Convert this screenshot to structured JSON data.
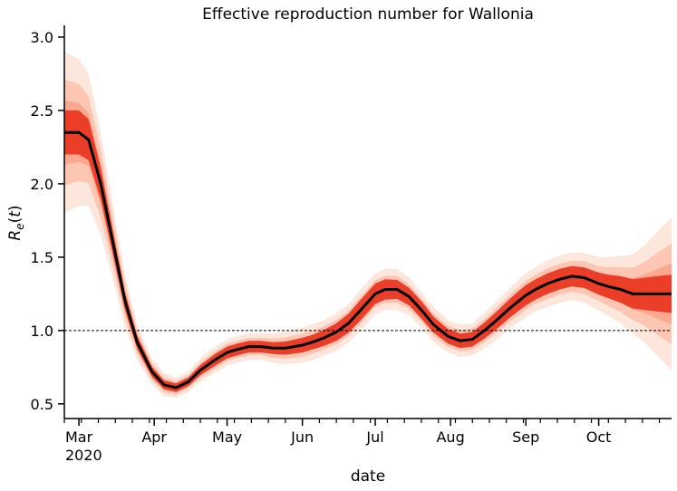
{
  "chart_data": {
    "type": "line",
    "title": "Effective reproduction number for Wallonia",
    "xlabel": "date",
    "ylabel": "R_e(t)",
    "ylim": [
      0.4,
      3.08
    ],
    "xlim": [
      "2020-02-24",
      "2020-10-31"
    ],
    "yticks": [
      0.5,
      1.0,
      1.5,
      2.0,
      2.5,
      3.0
    ],
    "ytick_labels": [
      "0.5",
      "1.0",
      "1.5",
      "2.0",
      "2.5",
      "3.0"
    ],
    "xticks": [
      {
        "date": "2020-03-01",
        "label": "Mar"
      },
      {
        "date": "2020-04-01",
        "label": "Apr"
      },
      {
        "date": "2020-05-01",
        "label": "May"
      },
      {
        "date": "2020-06-01",
        "label": "Jun"
      },
      {
        "date": "2020-07-01",
        "label": "Jul"
      },
      {
        "date": "2020-08-01",
        "label": "Aug"
      },
      {
        "date": "2020-09-01",
        "label": "Sep"
      },
      {
        "date": "2020-10-01",
        "label": "Oct"
      }
    ],
    "year_label": "2020",
    "reference_line": 1.0,
    "series": [
      {
        "color": "#000000",
        "x": [
          "2020-02-24",
          "2020-03-01",
          "2020-03-05",
          "2020-03-10",
          "2020-03-15",
          "2020-03-20",
          "2020-03-25",
          "2020-03-31",
          "2020-04-05",
          "2020-04-10",
          "2020-04-15",
          "2020-04-20",
          "2020-04-26",
          "2020-05-01",
          "2020-05-05",
          "2020-05-10",
          "2020-05-15",
          "2020-05-20",
          "2020-05-25",
          "2020-06-01",
          "2020-06-05",
          "2020-06-10",
          "2020-06-15",
          "2020-06-20",
          "2020-06-25",
          "2020-07-01",
          "2020-07-05",
          "2020-07-10",
          "2020-07-15",
          "2020-07-20",
          "2020-07-25",
          "2020-07-31",
          "2020-08-05",
          "2020-08-10",
          "2020-08-15",
          "2020-08-20",
          "2020-08-26",
          "2020-09-01",
          "2020-09-05",
          "2020-09-10",
          "2020-09-15",
          "2020-09-20",
          "2020-09-25",
          "2020-10-01",
          "2020-10-05",
          "2020-10-10",
          "2020-10-15",
          "2020-10-20",
          "2020-10-25",
          "2020-10-31"
        ],
        "y": [
          2.35,
          2.35,
          2.3,
          2.0,
          1.6,
          1.2,
          0.92,
          0.72,
          0.63,
          0.61,
          0.65,
          0.73,
          0.8,
          0.85,
          0.87,
          0.89,
          0.89,
          0.88,
          0.88,
          0.9,
          0.92,
          0.95,
          0.99,
          1.05,
          1.14,
          1.25,
          1.28,
          1.28,
          1.23,
          1.14,
          1.04,
          0.96,
          0.93,
          0.94,
          1.0,
          1.07,
          1.16,
          1.24,
          1.28,
          1.32,
          1.35,
          1.37,
          1.36,
          1.32,
          1.3,
          1.28,
          1.25,
          1.25,
          1.25,
          1.25
        ],
        "band_inner": [
          0.15,
          0.15,
          0.14,
          0.11,
          0.08,
          0.06,
          0.045,
          0.035,
          0.03,
          0.03,
          0.03,
          0.035,
          0.04,
          0.04,
          0.04,
          0.04,
          0.04,
          0.04,
          0.045,
          0.05,
          0.05,
          0.055,
          0.06,
          0.065,
          0.07,
          0.07,
          0.07,
          0.065,
          0.06,
          0.06,
          0.055,
          0.05,
          0.05,
          0.05,
          0.055,
          0.06,
          0.065,
          0.07,
          0.07,
          0.07,
          0.07,
          0.07,
          0.07,
          0.075,
          0.08,
          0.09,
          0.1,
          0.11,
          0.12,
          0.13
        ],
        "band_outer": [
          0.55,
          0.5,
          0.45,
          0.35,
          0.25,
          0.18,
          0.12,
          0.09,
          0.08,
          0.07,
          0.07,
          0.08,
          0.09,
          0.09,
          0.09,
          0.09,
          0.09,
          0.1,
          0.11,
          0.12,
          0.12,
          0.12,
          0.13,
          0.13,
          0.14,
          0.14,
          0.14,
          0.14,
          0.13,
          0.12,
          0.12,
          0.11,
          0.11,
          0.11,
          0.12,
          0.13,
          0.14,
          0.15,
          0.15,
          0.16,
          0.16,
          0.16,
          0.17,
          0.18,
          0.2,
          0.23,
          0.27,
          0.33,
          0.42,
          0.52
        ]
      }
    ],
    "colors": {
      "line": "#000000",
      "band_inner": "#e8321e",
      "band_mid": "#f98a6a",
      "band_outer": "#fde0d2"
    }
  }
}
